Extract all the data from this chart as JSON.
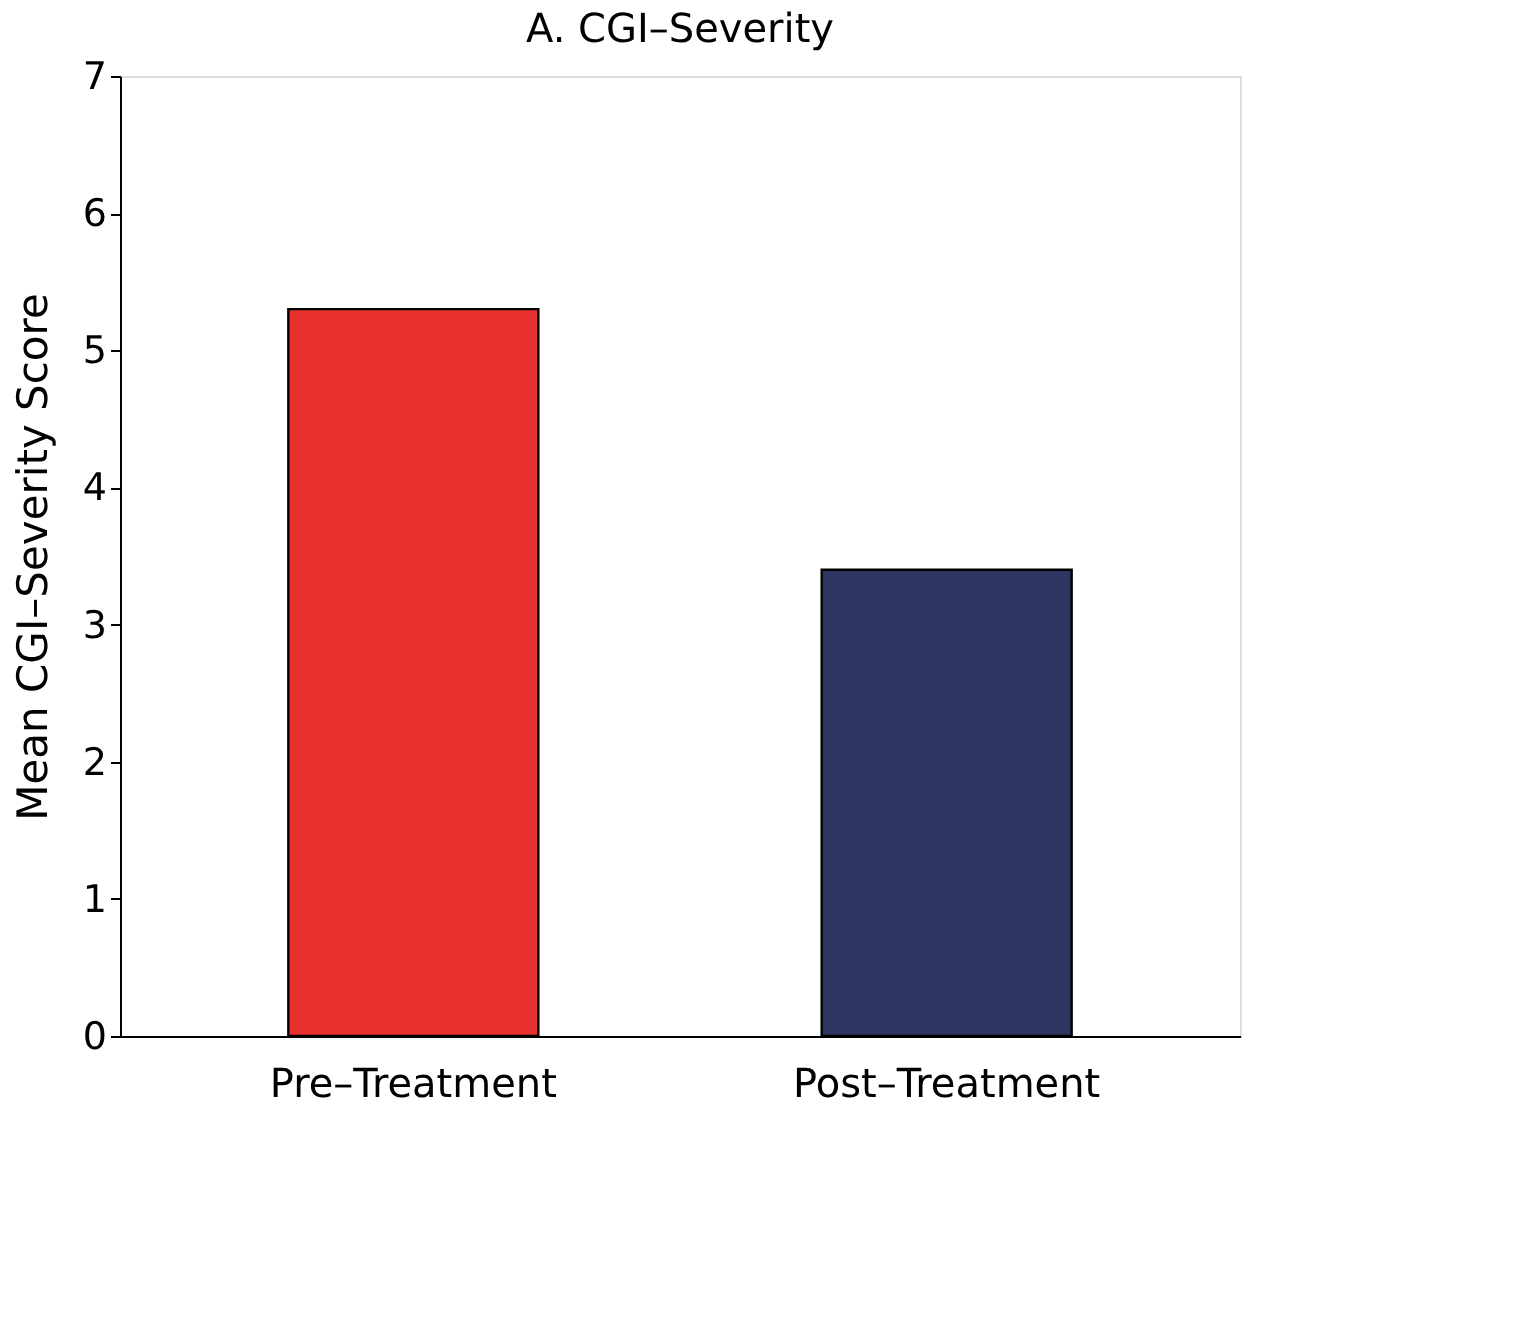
{
  "chart_data": {
    "type": "bar",
    "title": "A. CGI–Severity",
    "ylabel": "Mean CGI–Severity Score",
    "categories": [
      "Pre–Treatment",
      "Post–Treatment"
    ],
    "values": [
      5.3,
      3.4
    ],
    "colors": [
      "#e8302e",
      "#2e3560"
    ],
    "ylim": [
      0,
      7
    ],
    "yticks": [
      0,
      1,
      2,
      3,
      4,
      5,
      6,
      7
    ],
    "grid": false
  }
}
